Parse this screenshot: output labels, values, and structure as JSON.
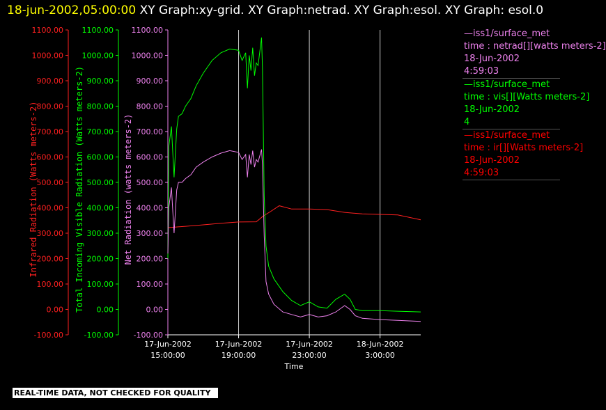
{
  "header": {
    "timestamp": "18-jun-2002,05:00:00",
    "title": "XY Graph:xy-grid.  XY Graph:netrad.  XY Graph:esol.  XY Graph: esol.0"
  },
  "banner": "REAL-TIME DATA, NOT CHECKED FOR QUALITY",
  "legend": [
    {
      "source": "—iss1/surface_met",
      "desc": "time : netrad[][watts meters-2]",
      "date": "18-Jun-2002",
      "time": "4:59:03",
      "color": "#ee82ee"
    },
    {
      "source": "—iss1/surface_met",
      "desc": "time : vis[][Watts meters-2]",
      "date": "18-Jun-2002",
      "time": "4",
      "color": "#00ff00"
    },
    {
      "source": "—iss1/surface_met",
      "desc": "time : ir[][Watts meters-2]",
      "date": "18-Jun-2002",
      "time": "4:59:03",
      "color": "#ff0000"
    }
  ],
  "chart_data": {
    "type": "line",
    "xlabel": "Time",
    "x_ticks": [
      {
        "d": "17-Jun-2002",
        "t": "15:00:00",
        "h": 15
      },
      {
        "d": "17-Jun-2002",
        "t": "19:00:00",
        "h": 19
      },
      {
        "d": "17-Jun-2002",
        "t": "23:00:00",
        "h": 23
      },
      {
        "d": "18-Jun-2002",
        "t": "3:00:00",
        "h": 27
      }
    ],
    "xlim": [
      15,
      29.3
    ],
    "grid_x": [
      19,
      23,
      27
    ],
    "axes": [
      {
        "label": "Infrared Radiation (Watts meters-2)",
        "color": "#ff2020",
        "ylim": [
          -100,
          1100
        ]
      },
      {
        "label": "Total Incoming Visible Radiation (Watts meters-2)",
        "color": "#00ff00",
        "ylim": [
          -100,
          1100
        ]
      },
      {
        "label": "Net Radiation (watts meters-2)",
        "color": "#ee82ee",
        "ylim": [
          -100,
          1100
        ]
      }
    ],
    "y_ticks": [
      -100,
      0,
      100,
      200,
      300,
      400,
      500,
      600,
      700,
      800,
      900,
      1000,
      1100
    ],
    "series": [
      {
        "color": "#ff2020",
        "x": [
          15,
          16,
          17,
          18,
          19,
          20,
          20.4,
          20.8,
          21.3,
          22,
          23,
          24,
          25,
          26,
          27,
          28,
          29.3
        ],
        "y": [
          322,
          327,
          333,
          339,
          344,
          345,
          368,
          385,
          408,
          395,
          395,
          393,
          382,
          376,
          374,
          372,
          353
        ]
      },
      {
        "color": "#00ff00",
        "x": [
          15,
          15.05,
          15.2,
          15.35,
          15.5,
          15.6,
          15.8,
          16,
          16.3,
          16.6,
          17,
          17.5,
          18,
          18.5,
          19,
          19.2,
          19.4,
          19.5,
          19.6,
          19.7,
          19.8,
          19.9,
          20,
          20.1,
          20.3,
          20.35,
          20.45,
          20.55,
          20.7,
          21,
          21.5,
          22,
          22.5,
          23,
          23.5,
          24,
          24.5,
          25,
          25.3,
          25.6,
          26,
          27,
          28,
          29.3
        ],
        "y": [
          200,
          640,
          720,
          520,
          710,
          760,
          770,
          800,
          830,
          880,
          930,
          980,
          1010,
          1025,
          1020,
          980,
          1010,
          870,
          1000,
          940,
          1030,
          920,
          970,
          960,
          1070,
          950,
          450,
          250,
          170,
          120,
          70,
          35,
          15,
          30,
          10,
          5,
          40,
          60,
          40,
          0,
          -5,
          -5,
          -7,
          -10
        ]
      },
      {
        "color": "#ee82ee",
        "x": [
          15,
          15.05,
          15.2,
          15.35,
          15.5,
          15.6,
          15.8,
          16,
          16.3,
          16.6,
          17,
          17.5,
          18,
          18.5,
          19,
          19.2,
          19.4,
          19.5,
          19.6,
          19.7,
          19.8,
          19.9,
          20,
          20.1,
          20.3,
          20.35,
          20.45,
          20.55,
          20.7,
          21,
          21.5,
          22,
          22.5,
          23,
          23.5,
          24,
          24.5,
          25,
          25.3,
          25.6,
          26,
          27,
          28,
          29.3
        ],
        "y": [
          220,
          400,
          480,
          300,
          470,
          500,
          500,
          515,
          530,
          560,
          580,
          600,
          615,
          625,
          618,
          590,
          610,
          520,
          610,
          570,
          625,
          560,
          590,
          580,
          630,
          570,
          290,
          110,
          60,
          20,
          -10,
          -20,
          -30,
          -20,
          -30,
          -25,
          -10,
          15,
          0,
          -25,
          -35,
          -40,
          -43,
          -47
        ]
      }
    ]
  }
}
